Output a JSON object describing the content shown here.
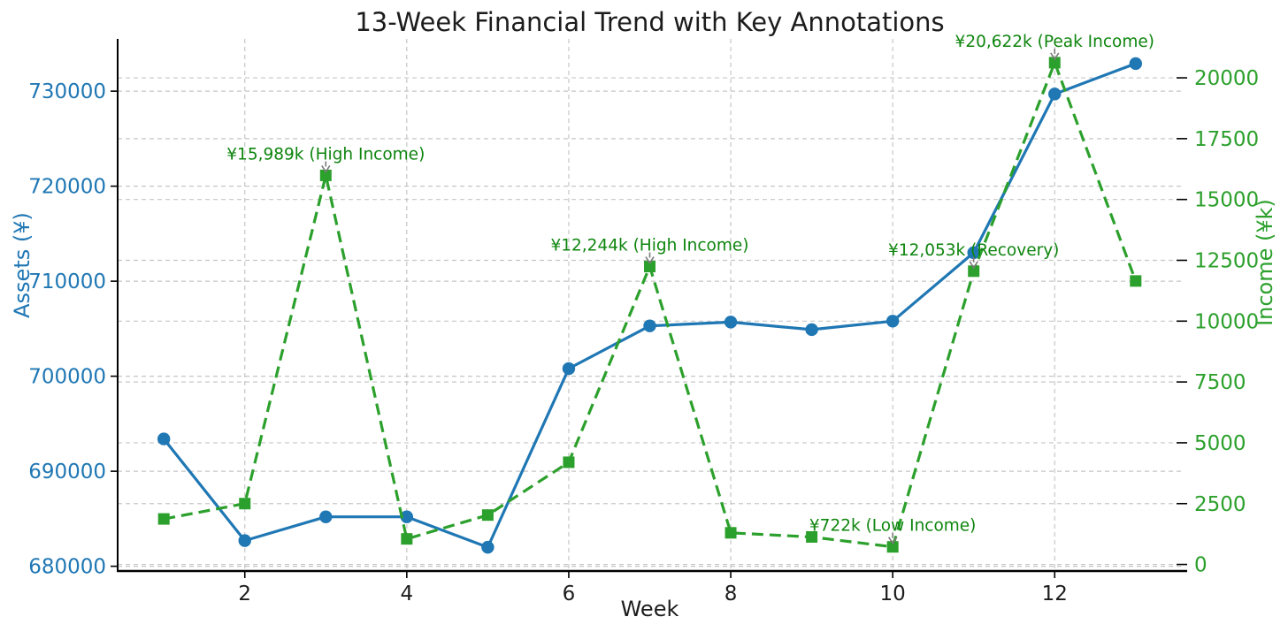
{
  "chart_data": {
    "type": "line",
    "title": "13-Week Financial Trend with Key Annotations",
    "xlabel": "Week",
    "grid": true,
    "x": [
      1,
      2,
      3,
      4,
      5,
      6,
      7,
      8,
      9,
      10,
      11,
      12,
      13
    ],
    "x_ticks": [
      2,
      4,
      6,
      8,
      10,
      12
    ],
    "xlim": [
      0.43,
      13.57
    ],
    "left_axis": {
      "label": "Assets (¥)",
      "color": "#1f77b4",
      "ticks": [
        680000,
        690000,
        700000,
        710000,
        720000,
        730000
      ],
      "ylim": [
        679500,
        735500
      ]
    },
    "right_axis": {
      "label": "Income (¥k)",
      "color": "#2ca02c",
      "ticks": [
        0,
        2500,
        5000,
        7500,
        10000,
        12500,
        15000,
        17500,
        20000
      ],
      "ylim": [
        -270,
        21600
      ]
    },
    "series": [
      {
        "name": "Assets",
        "axis": "left",
        "color": "#1f77b4",
        "line_style": "solid",
        "marker": "circle",
        "values": [
          693400,
          682700,
          685200,
          685200,
          682000,
          700800,
          705300,
          705700,
          704900,
          705800,
          713000,
          729700,
          732900
        ]
      },
      {
        "name": "Income",
        "axis": "right",
        "color": "#2ca02c",
        "line_style": "dashed",
        "marker": "square",
        "values": [
          1870,
          2500,
          15989,
          1050,
          2030,
          4200,
          12244,
          1300,
          1130,
          722,
          12053,
          20622,
          11650
        ]
      }
    ],
    "annotations": [
      {
        "week": 3,
        "value": 15989,
        "text": "¥15,989k (High Income)"
      },
      {
        "week": 7,
        "value": 12244,
        "text": "¥12,244k (High Income)"
      },
      {
        "week": 10,
        "value": 722,
        "text": "¥722k (Low Income)"
      },
      {
        "week": 11,
        "value": 12053,
        "text": "¥12,053k (Recovery)"
      },
      {
        "week": 12,
        "value": 20622,
        "text": "¥20,622k (Peak Income)"
      }
    ],
    "annotation_color": "#0e850e",
    "arrow_color": "#7a7a7a",
    "grid_color": "#bdbdbd",
    "spine_color": "#000000",
    "tick_label_color": "#1c1c1c"
  }
}
